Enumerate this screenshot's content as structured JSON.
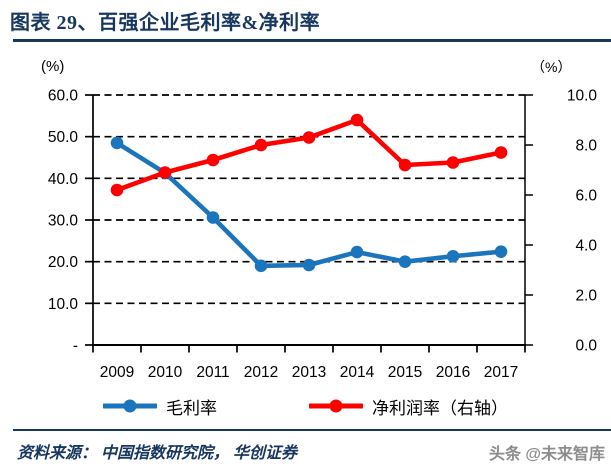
{
  "page": {
    "title": "图表 29、百强企业毛利率&净利率",
    "source_note": "资料来源： 中国指数研究院， 华创证券",
    "watermark": "头条 @未来智库"
  },
  "colors": {
    "accent_navy": "#17375E",
    "series_blue": "#1B75BC",
    "series_red": "#FF0000",
    "grid_black": "#000000",
    "watermark_gray": "#8D8D8D"
  },
  "chart_data": {
    "type": "line",
    "title": "百强企业毛利率&净利率",
    "categories": [
      "2009",
      "2010",
      "2011",
      "2012",
      "2013",
      "2014",
      "2015",
      "2016",
      "2017"
    ],
    "series": [
      {
        "name": "毛利率",
        "axis": "left",
        "color": "#1B75BC",
        "values": [
          48.5,
          41.3,
          30.6,
          19.0,
          19.2,
          22.3,
          20.0,
          21.3,
          22.4
        ]
      },
      {
        "name": "净利润率（右轴）",
        "axis": "right",
        "color": "#FF0000",
        "values": [
          6.2,
          6.9,
          7.4,
          8.0,
          8.3,
          9.0,
          7.2,
          7.3,
          7.7
        ]
      }
    ],
    "left_axis": {
      "unit_label": "(%)",
      "min": 0,
      "max": 60,
      "tick_values": [
        60,
        50,
        40,
        30,
        20,
        10,
        0
      ],
      "tick_labels": [
        "60.0",
        "50.0",
        "40.0",
        "30.0",
        "20.0",
        "10.0",
        "-"
      ]
    },
    "right_axis": {
      "unit_label": "（%）",
      "min": 0,
      "max": 10,
      "tick_values": [
        10,
        8,
        6,
        4,
        2,
        0
      ],
      "tick_labels": [
        "10.0",
        "8.0",
        "6.0",
        "4.0",
        "2.0",
        "0.0"
      ]
    },
    "grid": "dashed-horizontal",
    "legend_position": "bottom"
  }
}
